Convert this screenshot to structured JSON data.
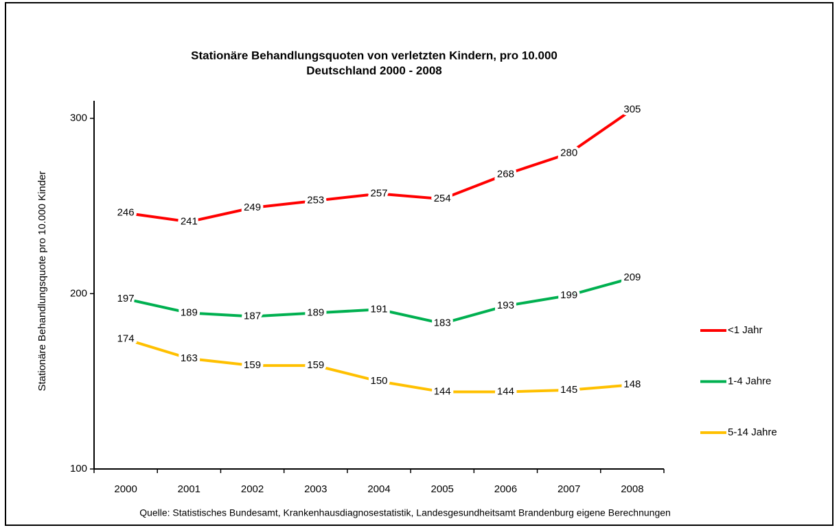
{
  "chart_data": {
    "type": "line",
    "title": "Stationäre Behandlungsquoten  von verletzten Kindern, pro 10.000",
    "subtitle": "Deutschland  2000 - 2008",
    "y_label": "Stationäre Behandlungsquote pro 10.000 Kinder",
    "source": "Quelle: Statistisches Bundesamt, Krankenhausdiagnosestatistik, Landesgesundheitsamt Brandenburg eigene Berechnungen",
    "categories": [
      "2000",
      "2001",
      "2002",
      "2003",
      "2004",
      "2005",
      "2006",
      "2007",
      "2008"
    ],
    "series": [
      {
        "name": "<1 Jahr",
        "color": "#ff0000",
        "values": [
          246,
          241,
          249,
          253,
          257,
          254,
          268,
          280,
          305
        ]
      },
      {
        "name": "1-4 Jahre",
        "color": "#00b050",
        "values": [
          197,
          189,
          187,
          189,
          191,
          183,
          193,
          199,
          209
        ]
      },
      {
        "name": "5-14 Jahre",
        "color": "#ffc000",
        "values": [
          174,
          163,
          159,
          159,
          150,
          144,
          144,
          145,
          148
        ]
      }
    ],
    "ylim": [
      100,
      310
    ],
    "yticks": [
      100,
      200,
      300
    ],
    "legend": "right"
  }
}
